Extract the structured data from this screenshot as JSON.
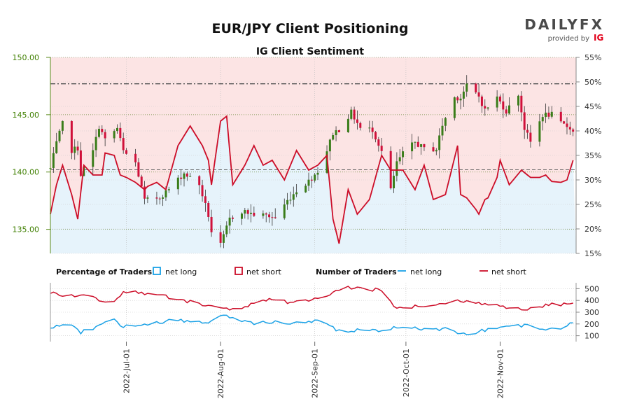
{
  "header": {
    "title": "EUR/JPY Client Positioning",
    "subtitle": "IG Client Sentiment"
  },
  "brand": {
    "name": "DAILYFX",
    "provided_by": "provided by",
    "ig": "IG",
    "accent_color": "#e2001a"
  },
  "legend": {
    "percentage_title": "Percentage of Traders",
    "number_title": "Number of Traders",
    "net_long": "net long",
    "net_short": "net short"
  },
  "colors": {
    "up_candle": "#3a7d1a",
    "down_candle": "#d0103a",
    "net_short_line": "#cc0d28",
    "net_long_line": "#1aa1e6",
    "short_fill": "#fce4e4",
    "long_fill": "#e6f3fb",
    "dashed_ref": "#555555"
  },
  "chart_data": [
    {
      "type": "candlestick",
      "title": "IG Client Sentiment",
      "left_axis": {
        "ylim": [
          132.9,
          150
        ],
        "ticks": [
          "135.00",
          "140.00",
          "145.00",
          "150.00"
        ],
        "tick_values": [
          135,
          140,
          145,
          150
        ]
      },
      "right_axis": {
        "ylim": [
          15,
          55
        ],
        "ticks": [
          "15%",
          "20%",
          "25%",
          "30%",
          "35%",
          "40%",
          "45%",
          "50%",
          "55%"
        ],
        "tick_values": [
          15,
          20,
          25,
          30,
          35,
          40,
          45,
          50,
          55
        ]
      },
      "x_axis": {
        "start": "2022-06-06",
        "end": "2022-11-26",
        "ticks": [
          "2022-Jul-01",
          "2022-Aug-01",
          "2022-Sep-01",
          "2022-Oct-01",
          "2022-Nov-01"
        ],
        "tick_dates": [
          "2022-07-01",
          "2022-08-01",
          "2022-09-01",
          "2022-10-01",
          "2022-11-01"
        ]
      },
      "reference_lines": [
        147.7,
        140.2
      ],
      "grid": true,
      "price_anchors": [
        [
          "2022-06-06",
          140.3
        ],
        [
          "2022-06-08",
          142.5
        ],
        [
          "2022-06-10",
          144.2
        ],
        [
          "2022-06-13",
          141.9
        ],
        [
          "2022-06-15",
          142.1
        ],
        [
          "2022-06-16",
          139.8
        ],
        [
          "2022-06-20",
          141.8
        ],
        [
          "2022-06-22",
          144.0
        ],
        [
          "2022-06-24",
          142.8
        ],
        [
          "2022-06-28",
          143.8
        ],
        [
          "2022-06-30",
          141.8
        ],
        [
          "2022-07-04",
          140.8
        ],
        [
          "2022-07-07",
          137.5
        ],
        [
          "2022-07-12",
          137.8
        ],
        [
          "2022-07-15",
          138.5
        ],
        [
          "2022-07-20",
          139.9
        ],
        [
          "2022-07-25",
          138.9
        ],
        [
          "2022-07-28",
          136.2
        ],
        [
          "2022-07-29",
          134.8
        ],
        [
          "2022-08-01",
          133.6
        ],
        [
          "2022-08-04",
          135.9
        ],
        [
          "2022-08-08",
          136.6
        ],
        [
          "2022-08-12",
          136.3
        ],
        [
          "2022-08-16",
          136.2
        ],
        [
          "2022-08-19",
          136.0
        ],
        [
          "2022-08-23",
          137.5
        ],
        [
          "2022-08-26",
          138.4
        ],
        [
          "2022-08-30",
          139.2
        ],
        [
          "2022-09-02",
          140.1
        ],
        [
          "2022-09-05",
          141.9
        ],
        [
          "2022-09-07",
          143.4
        ],
        [
          "2022-09-09",
          143.7
        ],
        [
          "2022-09-13",
          145.2
        ],
        [
          "2022-09-16",
          143.8
        ],
        [
          "2022-09-20",
          143.7
        ],
        [
          "2022-09-23",
          141.8
        ],
        [
          "2022-09-26",
          138.4
        ],
        [
          "2022-09-28",
          140.8
        ],
        [
          "2022-09-30",
          141.6
        ],
        [
          "2022-10-04",
          142.6
        ],
        [
          "2022-10-07",
          142.0
        ],
        [
          "2022-10-11",
          142.0
        ],
        [
          "2022-10-13",
          144.1
        ],
        [
          "2022-10-17",
          146.5
        ],
        [
          "2022-10-19",
          146.5
        ],
        [
          "2022-10-21",
          147.5
        ],
        [
          "2022-10-25",
          146.6
        ],
        [
          "2022-10-27",
          145.4
        ],
        [
          "2022-10-31",
          146.5
        ],
        [
          "2022-11-03",
          145.3
        ],
        [
          "2022-11-07",
          146.8
        ],
        [
          "2022-11-09",
          143.8
        ],
        [
          "2022-11-11",
          142.6
        ],
        [
          "2022-11-15",
          145.0
        ],
        [
          "2022-11-18",
          145.0
        ],
        [
          "2022-11-21",
          144.2
        ],
        [
          "2022-11-24",
          143.9
        ],
        [
          "2022-11-25",
          143.5
        ]
      ],
      "net_short_pct_anchors": [
        [
          "2022-06-06",
          23.0
        ],
        [
          "2022-06-08",
          29.0
        ],
        [
          "2022-06-10",
          33.0
        ],
        [
          "2022-06-12",
          33.0
        ],
        [
          "2022-06-13",
          27.0
        ],
        [
          "2022-06-15",
          22.0
        ],
        [
          "2022-06-17",
          33.0
        ],
        [
          "2022-06-20",
          31.0
        ],
        [
          "2022-06-23",
          31.0
        ],
        [
          "2022-06-25",
          40.0
        ],
        [
          "2022-06-27",
          35.0
        ],
        [
          "2022-06-29",
          31.0
        ],
        [
          "2022-07-03",
          30.0
        ],
        [
          "2022-07-07",
          28.0
        ],
        [
          "2022-07-10",
          30.0
        ],
        [
          "2022-07-14",
          28.0
        ],
        [
          "2022-07-18",
          37.0
        ],
        [
          "2022-07-22",
          41.0
        ],
        [
          "2022-07-26",
          37.0
        ],
        [
          "2022-07-28",
          34.0
        ],
        [
          "2022-07-30",
          24.0
        ],
        [
          "2022-08-01",
          42.0
        ],
        [
          "2022-08-03",
          43.0
        ],
        [
          "2022-08-05",
          29.0
        ],
        [
          "2022-08-09",
          33.0
        ],
        [
          "2022-08-12",
          37.0
        ],
        [
          "2022-08-15",
          33.0
        ],
        [
          "2022-08-18",
          34.0
        ],
        [
          "2022-08-22",
          30.0
        ],
        [
          "2022-08-26",
          36.0
        ],
        [
          "2022-08-30",
          32.0
        ],
        [
          "2022-09-02",
          33.0
        ],
        [
          "2022-09-05",
          35.0
        ],
        [
          "2022-09-07",
          22.0
        ],
        [
          "2022-09-09",
          17.0
        ],
        [
          "2022-09-12",
          28.0
        ],
        [
          "2022-09-15",
          23.0
        ],
        [
          "2022-09-19",
          26.0
        ],
        [
          "2022-09-23",
          35.0
        ],
        [
          "2022-09-26",
          32.0
        ],
        [
          "2022-09-30",
          32.0
        ],
        [
          "2022-10-04",
          28.0
        ],
        [
          "2022-10-07",
          33.0
        ],
        [
          "2022-10-10",
          26.0
        ],
        [
          "2022-10-14",
          27.0
        ],
        [
          "2022-10-18",
          37.0
        ],
        [
          "2022-10-19",
          27.0
        ],
        [
          "2022-10-22",
          26.0
        ],
        [
          "2022-10-25",
          23.0
        ],
        [
          "2022-10-27",
          26.0
        ],
        [
          "2022-10-30",
          27.0
        ],
        [
          "2022-11-01",
          34.0
        ],
        [
          "2022-11-04",
          29.0
        ],
        [
          "2022-11-08",
          32.0
        ],
        [
          "2022-11-12",
          30.0
        ],
        [
          "2022-11-16",
          31.0
        ],
        [
          "2022-11-19",
          29.0
        ],
        [
          "2022-11-23",
          30.0
        ],
        [
          "2022-11-25",
          34.0
        ]
      ]
    },
    {
      "type": "line",
      "title": "Number of Traders",
      "ylim": [
        50,
        550
      ],
      "ticks": [
        "100",
        "200",
        "300",
        "400",
        "500"
      ],
      "tick_values": [
        100,
        200,
        300,
        400,
        500
      ],
      "series": [
        {
          "name": "net short",
          "anchors": [
            [
              "2022-06-06",
              470
            ],
            [
              "2022-06-12",
              440
            ],
            [
              "2022-06-18",
              440
            ],
            [
              "2022-06-22",
              400
            ],
            [
              "2022-06-26",
              380
            ],
            [
              "2022-06-30",
              470
            ],
            [
              "2022-07-04",
              470
            ],
            [
              "2022-07-10",
              455
            ],
            [
              "2022-07-16",
              420
            ],
            [
              "2022-07-22",
              390
            ],
            [
              "2022-07-28",
              360
            ],
            [
              "2022-08-01",
              340
            ],
            [
              "2022-08-06",
              320
            ],
            [
              "2022-08-12",
              370
            ],
            [
              "2022-08-18",
              410
            ],
            [
              "2022-08-24",
              380
            ],
            [
              "2022-08-30",
              400
            ],
            [
              "2022-09-04",
              430
            ],
            [
              "2022-09-08",
              480
            ],
            [
              "2022-09-12",
              510
            ],
            [
              "2022-09-18",
              500
            ],
            [
              "2022-09-24",
              480
            ],
            [
              "2022-09-27",
              340
            ],
            [
              "2022-10-02",
              340
            ],
            [
              "2022-10-08",
              360
            ],
            [
              "2022-10-14",
              370
            ],
            [
              "2022-10-18",
              400
            ],
            [
              "2022-10-24",
              380
            ],
            [
              "2022-10-30",
              370
            ],
            [
              "2022-11-04",
              340
            ],
            [
              "2022-11-10",
              330
            ],
            [
              "2022-11-16",
              360
            ],
            [
              "2022-11-22",
              370
            ],
            [
              "2022-11-25",
              380
            ]
          ]
        },
        {
          "name": "net long",
          "anchors": [
            [
              "2022-06-06",
              170
            ],
            [
              "2022-06-12",
              200
            ],
            [
              "2022-06-16",
              130
            ],
            [
              "2022-06-20",
              160
            ],
            [
              "2022-06-26",
              250
            ],
            [
              "2022-06-30",
              180
            ],
            [
              "2022-07-04",
              170
            ],
            [
              "2022-07-10",
              200
            ],
            [
              "2022-07-16",
              240
            ],
            [
              "2022-07-22",
              220
            ],
            [
              "2022-07-28",
              210
            ],
            [
              "2022-08-01",
              280
            ],
            [
              "2022-08-06",
              230
            ],
            [
              "2022-08-12",
              200
            ],
            [
              "2022-08-18",
              220
            ],
            [
              "2022-08-24",
              200
            ],
            [
              "2022-08-30",
              220
            ],
            [
              "2022-09-04",
              240
            ],
            [
              "2022-09-08",
              140
            ],
            [
              "2022-09-12",
              130
            ],
            [
              "2022-09-18",
              160
            ],
            [
              "2022-09-24",
              140
            ],
            [
              "2022-09-27",
              170
            ],
            [
              "2022-10-02",
              180
            ],
            [
              "2022-10-08",
              150
            ],
            [
              "2022-10-14",
              160
            ],
            [
              "2022-10-18",
              120
            ],
            [
              "2022-10-22",
              110
            ],
            [
              "2022-10-27",
              150
            ],
            [
              "2022-11-01",
              160
            ],
            [
              "2022-11-05",
              180
            ],
            [
              "2022-11-10",
              190
            ],
            [
              "2022-11-16",
              160
            ],
            [
              "2022-11-22",
              170
            ],
            [
              "2022-11-25",
              210
            ]
          ]
        }
      ]
    }
  ]
}
